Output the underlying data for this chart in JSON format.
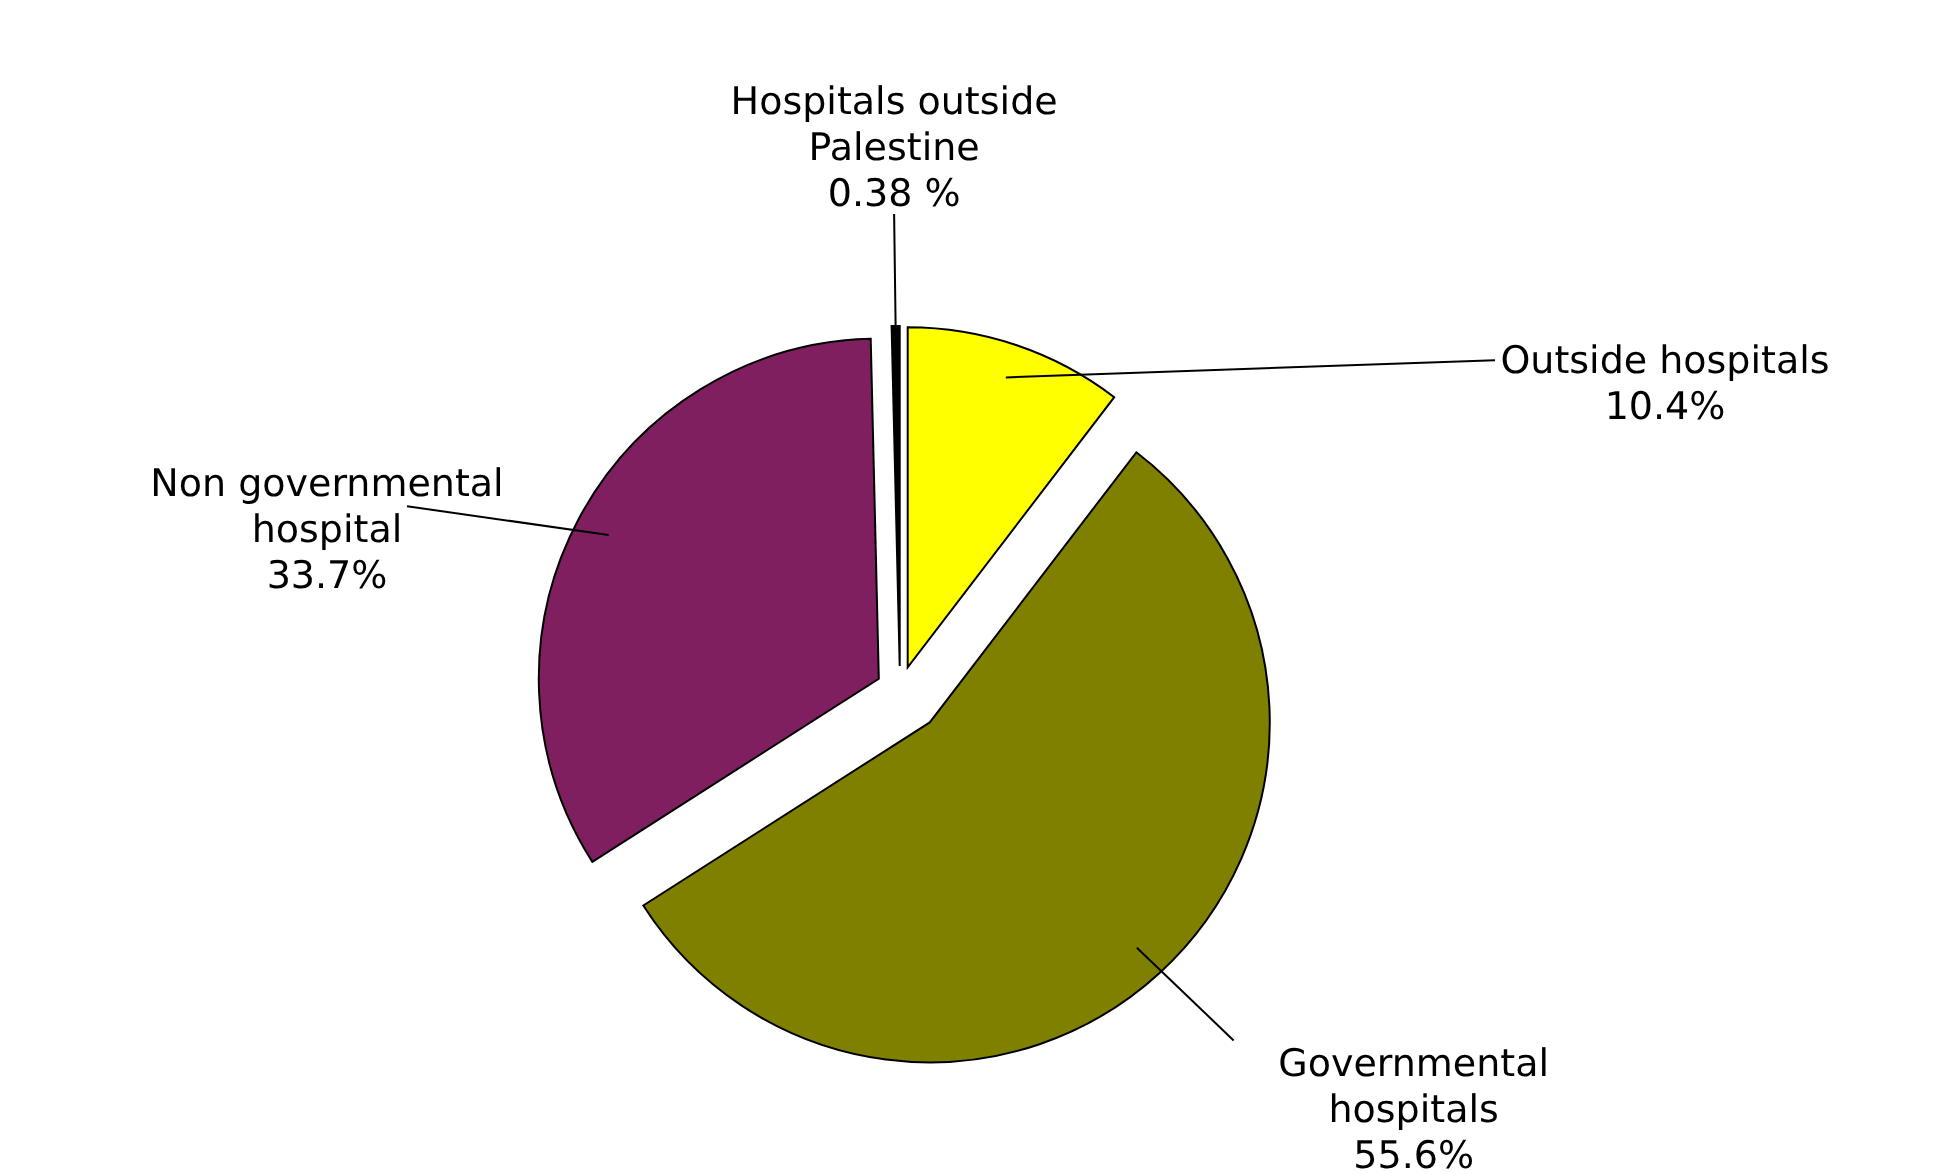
{
  "chart_data": {
    "type": "pie",
    "categories": [
      "Outside hospitals",
      "Governmental hospitals",
      "Non governmental hospital",
      "Hospitals outside Palestine"
    ],
    "values": [
      10.4,
      55.6,
      33.7,
      0.38
    ],
    "value_labels": [
      "10.4%",
      "55.6%",
      "33.7%",
      "0.38 %"
    ],
    "colors": [
      "#ffff00",
      "#808000",
      "#7f1f5f",
      "#000000"
    ]
  }
}
